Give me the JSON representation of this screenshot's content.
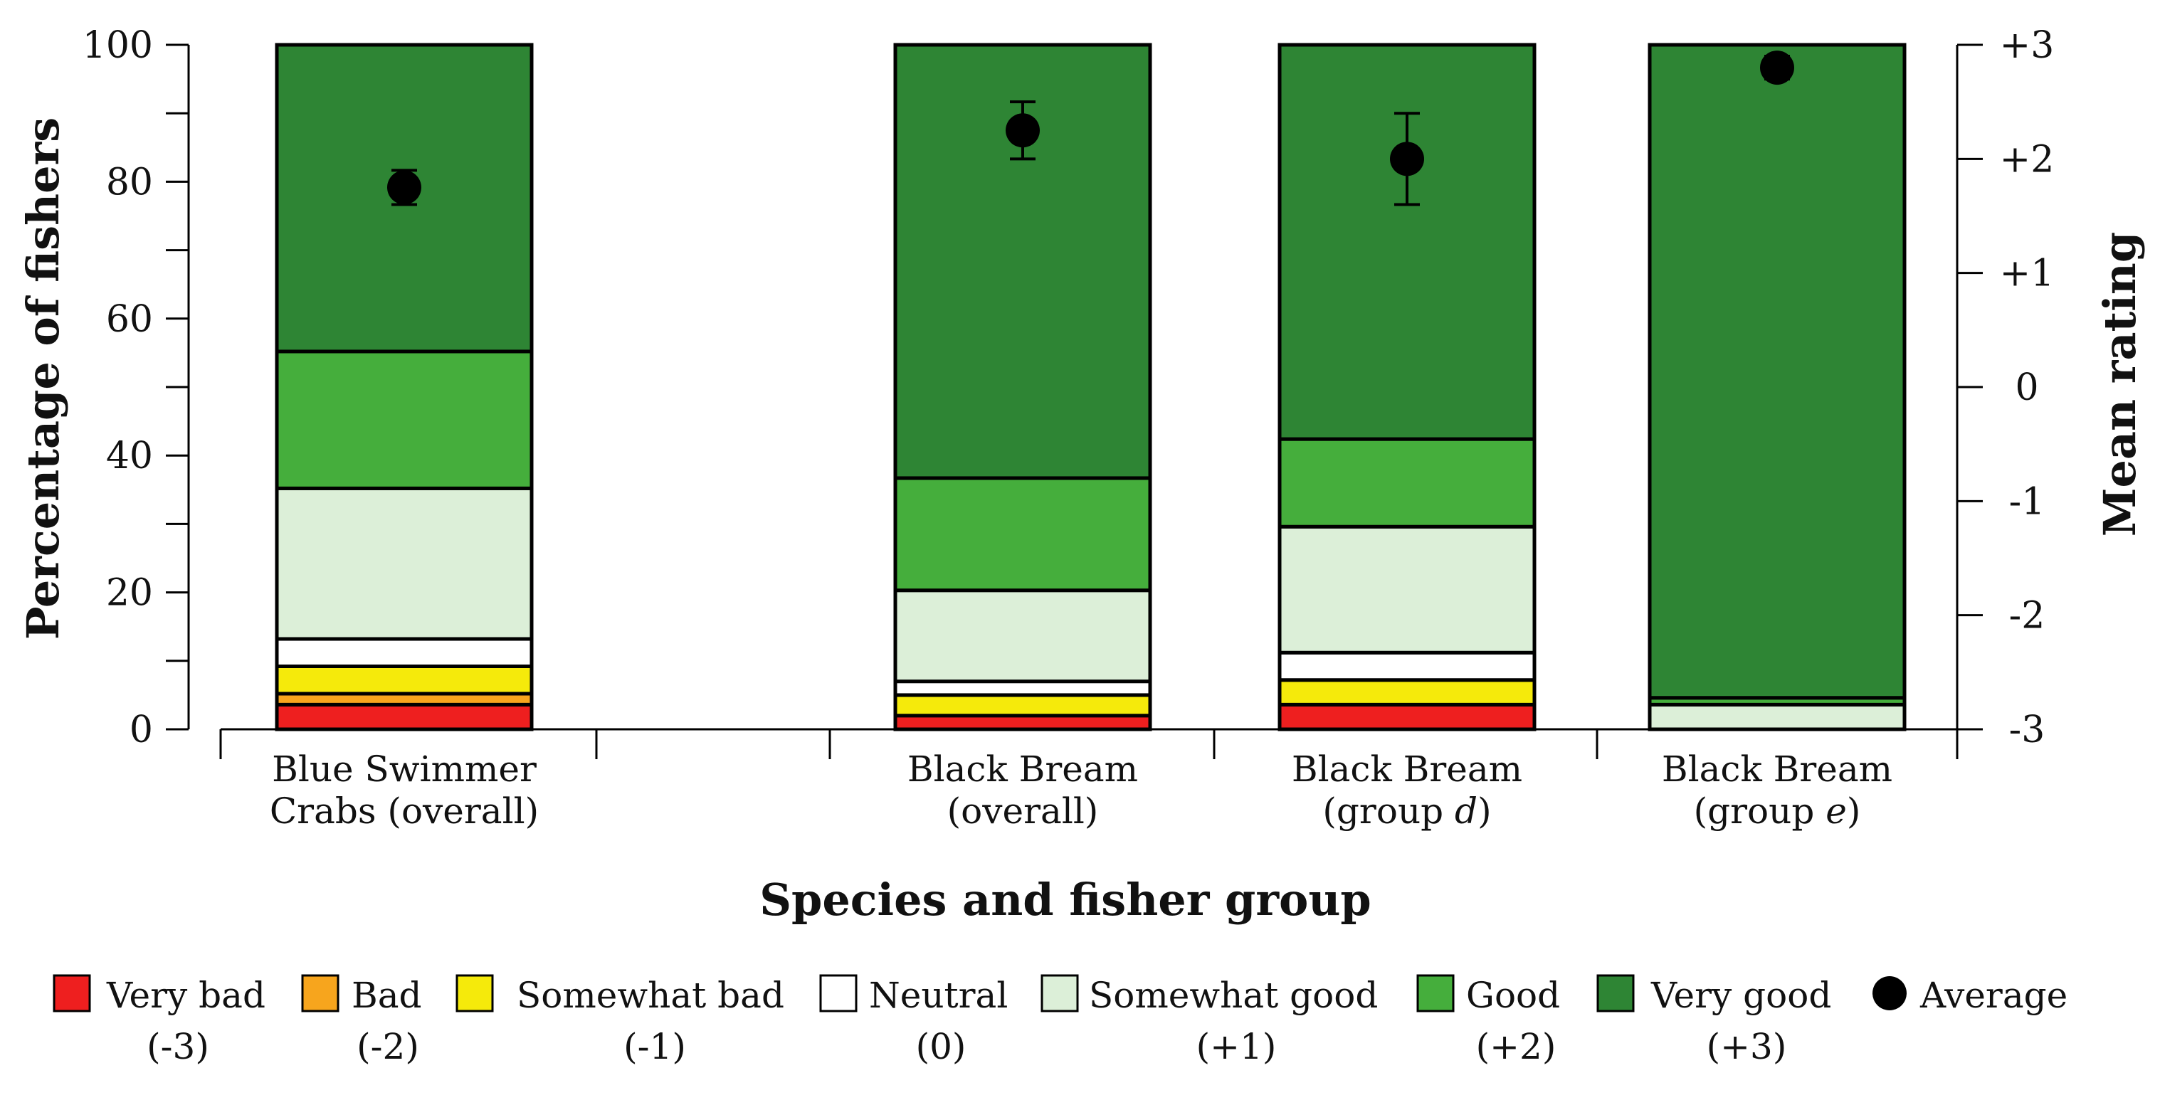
{
  "chart_data": {
    "type": "bar",
    "stacked": true,
    "xlabel": "Species and fisher group",
    "ylabel": "Percentage of fishers",
    "ylabel_right": "Mean rating",
    "ylim": [
      0,
      100
    ],
    "ylim_right": [
      -3,
      3
    ],
    "yticks": [
      "0",
      "20",
      "40",
      "60",
      "80",
      "100"
    ],
    "yticks_right": [
      "-3",
      "-2",
      "-1",
      "0",
      "+1",
      "+2",
      "+3"
    ],
    "categories": [
      {
        "line1": "Blue Swimmer",
        "line2": "Crabs (overall)"
      },
      {
        "line1": "Black Bream",
        "line2": "(overall)"
      },
      {
        "line1": "Black Bream",
        "line2": "(group ",
        "italic": "d",
        "close": ")"
      },
      {
        "line1": "Black Bream",
        "line2": "(group ",
        "italic": "e",
        "close": ")"
      }
    ],
    "series": [
      {
        "name": "Very bad",
        "code": "(-3)",
        "color": "#ee1f1f",
        "values": [
          3.6,
          2.0,
          3.6,
          0.0
        ]
      },
      {
        "name": "Bad",
        "code": "(-2)",
        "color": "#f7a51d",
        "values": [
          1.6,
          0.0,
          0.0,
          0.0
        ]
      },
      {
        "name": "Somewhat bad",
        "code": "(-1)",
        "color": "#f5ea0b",
        "values": [
          4.0,
          3.0,
          3.6,
          0.0
        ]
      },
      {
        "name": "Neutral",
        "code": "(0)",
        "color": "#ffffff",
        "values": [
          4.0,
          2.0,
          4.0,
          0.0
        ]
      },
      {
        "name": "Somewhat good",
        "code": "(+1)",
        "color": "#dcefd8",
        "values": [
          22.0,
          13.3,
          18.4,
          3.6
        ]
      },
      {
        "name": "Good",
        "code": "(+2)",
        "color": "#45ae3c",
        "values": [
          20.0,
          16.4,
          12.8,
          1.0
        ]
      },
      {
        "name": "Very good",
        "code": "(+3)",
        "color": "#2e8534",
        "values": [
          44.8,
          63.3,
          57.6,
          95.4
        ]
      }
    ],
    "average": {
      "name": "Average",
      "values": [
        1.75,
        2.25,
        2.0,
        2.8
      ],
      "err_low": [
        1.6,
        2.0,
        1.6,
        2.7
      ],
      "err_high": [
        1.9,
        2.5,
        2.4,
        2.9
      ]
    }
  }
}
